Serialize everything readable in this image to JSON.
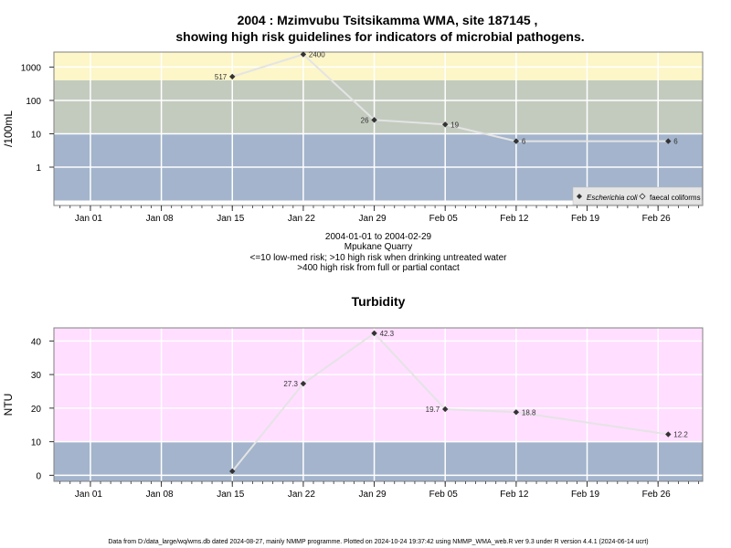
{
  "title_line1": "2004 : Mzimvubu Tsitsikamma WMA, site 187145 ,",
  "title_line2": "showing high risk guidelines for indicators of microbial pathogens.",
  "caption": {
    "date_range": "2004-01-01 to 2004-02-29",
    "site_name": "Mpukane Quarry",
    "guide_line1": "<=10 low-med risk; >10 high risk when drinking untreated water",
    "guide_line2": ">400 high risk from full or partial contact"
  },
  "footer": "Data from D:/data_large/wq/wms.db dated 2024-08-27, mainly NMMP programme. Plotted on 2024-10-24 19:37:42 using NMMP_WMA_web.R ver 9.3 under R version 4.4.1 (2024-06-14 ucrt)",
  "colors": {
    "low_band": "#a3b4cc",
    "mid_band": "#c3cbbf",
    "high_band": "#fcf6c8",
    "turbidity_band": "#ffdeff",
    "line": "#e4e4e4",
    "marker": "#333333"
  },
  "chart_data": [
    {
      "type": "line",
      "ylabel": "/100mL",
      "y_scale": "log",
      "yticks": [
        "1",
        "10",
        "100",
        "1000"
      ],
      "xticks": [
        "Jan 01",
        "Jan 08",
        "Jan 15",
        "Jan 22",
        "Jan 29",
        "Feb 05",
        "Feb 12",
        "Feb 19",
        "Feb 26"
      ],
      "grid": true,
      "bands": [
        {
          "from": 0.1,
          "to": 10,
          "color": "#a3b4cc"
        },
        {
          "from": 10,
          "to": 400,
          "color": "#c3cbbf"
        },
        {
          "from": 400,
          "to": 4000,
          "color": "#fcf6c8"
        }
      ],
      "series": [
        {
          "name": "Escherichia coli",
          "x": [
            "2004-01-15",
            "2004-01-22",
            "2004-01-29",
            "2004-02-05",
            "2004-02-12",
            "2004-02-27"
          ],
          "y": [
            517,
            2400,
            26,
            19,
            6,
            6
          ],
          "labels": [
            "517",
            "2400",
            "26",
            "19",
            "6",
            "6"
          ]
        }
      ],
      "legend": {
        "position": "bottom-right",
        "entries": [
          "Escherichia coli",
          "faecal coliforms"
        ]
      }
    },
    {
      "type": "line",
      "title": "Turbidity",
      "ylabel": "NTU",
      "yticks": [
        "0",
        "10",
        "20",
        "30",
        "40"
      ],
      "xticks": [
        "Jan 01",
        "Jan 08",
        "Jan 15",
        "Jan 22",
        "Jan 29",
        "Feb 05",
        "Feb 12",
        "Feb 19",
        "Feb 26"
      ],
      "grid": true,
      "bands": [
        {
          "from": -2,
          "to": 10,
          "color": "#a3b4cc"
        },
        {
          "from": 10,
          "to": 44,
          "color": "#ffdeff"
        }
      ],
      "series": [
        {
          "x": [
            "2004-01-15",
            "2004-01-22",
            "2004-01-29",
            "2004-02-05",
            "2004-02-12",
            "2004-02-27"
          ],
          "y": [
            1.2,
            27.3,
            42.3,
            19.7,
            18.8,
            12.2
          ],
          "labels": [
            "",
            "27.3",
            "42.3",
            "19.7",
            "18.8",
            "12.2"
          ]
        }
      ]
    }
  ]
}
